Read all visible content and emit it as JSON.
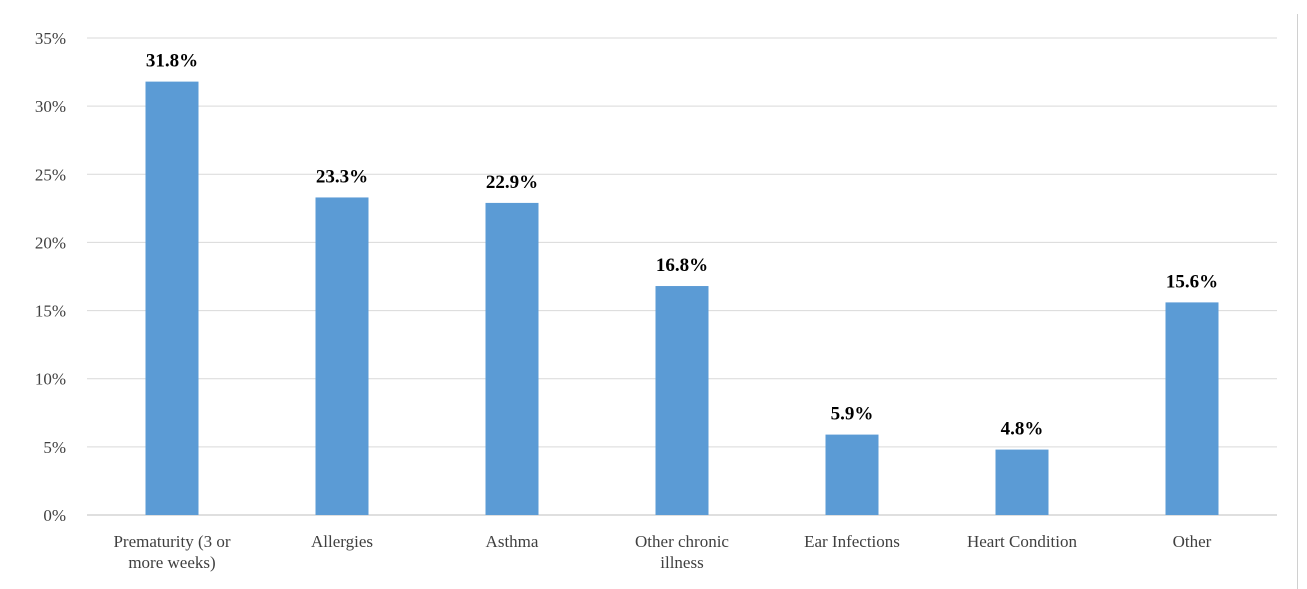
{
  "chart_data": {
    "type": "bar",
    "title": "",
    "xlabel": "",
    "ylabel": "",
    "categories": [
      [
        "Prematurity (3 or",
        "more weeks)"
      ],
      [
        "Allergies"
      ],
      [
        "Asthma"
      ],
      [
        "Other chronic",
        "illness"
      ],
      [
        "Ear Infections"
      ],
      [
        "Heart Condition"
      ],
      [
        "Other"
      ]
    ],
    "values": [
      31.8,
      23.3,
      22.9,
      16.8,
      5.9,
      4.8,
      15.6
    ],
    "data_labels": [
      "31.8%",
      "23.3%",
      "22.9%",
      "16.8%",
      "5.9%",
      "4.8%",
      "15.6%"
    ],
    "ylim": [
      0,
      35
    ],
    "yticks": [
      0,
      5,
      10,
      15,
      20,
      25,
      30,
      35
    ],
    "ytick_labels": [
      "0%",
      "5%",
      "10%",
      "15%",
      "20%",
      "25%",
      "30%",
      "35%"
    ],
    "grid": true,
    "legend": "none",
    "colors": {
      "bar": "#5b9bd5",
      "grid": "#d9d9d9",
      "axis": "#bfbfbf"
    }
  }
}
